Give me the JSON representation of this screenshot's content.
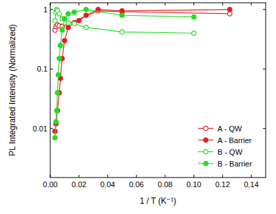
{
  "chart_data": {
    "type": "line",
    "x_label": "1 / T (K⁻¹)",
    "y_label": "PL Integrated Intensity (Normalized)",
    "log": "y",
    "legend": "lower right",
    "xlim": [
      0,
      0.15
    ],
    "ylim": [
      0.0015,
      1.3
    ],
    "xticks": [
      {
        "value": 0,
        "label": "0.00"
      },
      {
        "value": 0.02,
        "label": "0.02"
      },
      {
        "value": 0.04,
        "label": "0.04"
      },
      {
        "value": 0.06,
        "label": "0.06"
      },
      {
        "value": 0.08,
        "label": "0.08"
      },
      {
        "value": 0.1,
        "label": "0.10"
      },
      {
        "value": 0.12,
        "label": "0.12"
      },
      {
        "value": 0.14,
        "label": "0.14"
      }
    ],
    "yticks": [
      0.01,
      0.1,
      1
    ],
    "series": [
      {
        "name": "A - QW",
        "color": "#e02020",
        "marker": "open-circle",
        "x": [
          0.0033,
          0.004,
          0.005,
          0.00625,
          0.0083,
          0.0333,
          0.05,
          0.125
        ],
        "values": [
          0.45,
          0.52,
          0.55,
          0.53,
          0.52,
          0.95,
          0.92,
          0.85
        ]
      },
      {
        "name": "A - Barrier",
        "color": "#e02020",
        "marker": "circle",
        "x": [
          0.0033,
          0.004,
          0.005,
          0.00625,
          0.0071,
          0.0083,
          0.01,
          0.0125,
          0.0167,
          0.02,
          0.025,
          0.0333,
          0.05,
          0.125
        ],
        "values": [
          0.009,
          0.012,
          0.02,
          0.04,
          0.07,
          0.15,
          0.3,
          0.5,
          0.6,
          0.65,
          0.8,
          1.0,
          0.95,
          1.0
        ]
      },
      {
        "name": "B - QW",
        "color": "#22dd22",
        "marker": "open-circle",
        "x": [
          0.0033,
          0.004,
          0.0045,
          0.005,
          0.00625,
          0.0083,
          0.0125,
          0.0167,
          0.025,
          0.05,
          0.1
        ],
        "values": [
          0.65,
          0.9,
          1.0,
          0.95,
          0.85,
          0.7,
          0.6,
          0.58,
          0.5,
          0.42,
          0.4
        ]
      },
      {
        "name": "B - Barrier",
        "color": "#22dd22",
        "marker": "circle",
        "x": [
          0.0033,
          0.004,
          0.0045,
          0.005,
          0.0056,
          0.00625,
          0.0071,
          0.0083,
          0.01,
          0.0125,
          0.0167,
          0.025,
          0.05,
          0.1
        ],
        "values": [
          0.007,
          0.013,
          0.02,
          0.04,
          0.08,
          0.15,
          0.25,
          0.45,
          0.7,
          0.85,
          0.9,
          1.0,
          0.8,
          0.75
        ]
      }
    ]
  }
}
